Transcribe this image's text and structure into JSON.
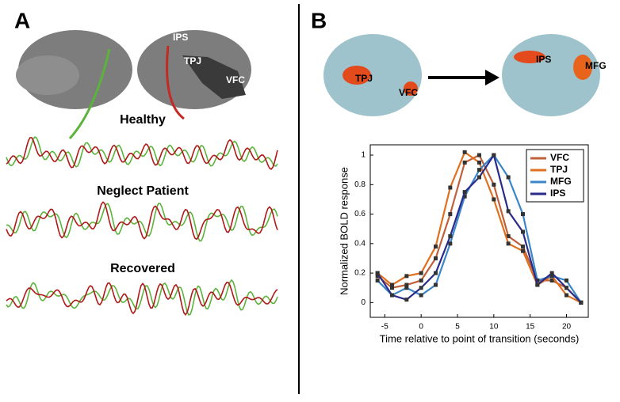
{
  "panel_a": {
    "label": "A",
    "regions": [
      "IPS",
      "TPJ",
      "VFC"
    ],
    "traces": [
      "Healthy",
      "Neglect Patient",
      "Recovered"
    ]
  },
  "panel_b": {
    "label": "B",
    "regions_before": [
      "TPJ",
      "VFC"
    ],
    "regions_after": [
      "IPS",
      "MFG"
    ]
  },
  "chart_data": {
    "type": "line",
    "x_label": "Time relative to point of transition (seconds)",
    "y_label": "Normalized BOLD response",
    "x": [
      -6,
      -4,
      -2,
      0,
      2,
      4,
      6,
      8,
      10,
      12,
      14,
      16,
      18,
      20,
      22
    ],
    "series": [
      {
        "name": "VFC",
        "color": "#c0603a",
        "values": [
          0.18,
          0.1,
          0.12,
          0.15,
          0.3,
          0.6,
          0.95,
          1.0,
          0.8,
          0.45,
          0.38,
          0.15,
          0.15,
          0.1,
          0.0
        ]
      },
      {
        "name": "TPJ",
        "color": "#e0701e",
        "values": [
          0.2,
          0.12,
          0.18,
          0.2,
          0.38,
          0.78,
          1.02,
          0.95,
          0.7,
          0.4,
          0.35,
          0.12,
          0.18,
          0.05,
          0.0
        ]
      },
      {
        "name": "MFG",
        "color": "#3a86c8",
        "values": [
          0.15,
          0.05,
          0.1,
          0.05,
          0.12,
          0.4,
          0.72,
          0.9,
          1.0,
          0.85,
          0.6,
          0.15,
          0.18,
          0.15,
          0.0
        ]
      },
      {
        "name": "IPS",
        "color": "#2a2a8a",
        "values": [
          0.2,
          0.05,
          0.02,
          0.1,
          0.2,
          0.45,
          0.75,
          0.85,
          1.0,
          0.62,
          0.48,
          0.12,
          0.2,
          0.1,
          0.0
        ]
      }
    ],
    "xlim": [
      -7,
      23
    ],
    "xticks": [
      -5,
      0,
      5,
      10,
      15,
      20
    ],
    "ylim": [
      -0.1,
      1.07
    ],
    "yticks": [
      0,
      0.2,
      0.4,
      0.6,
      0.8,
      1
    ],
    "legend": "upper right"
  }
}
